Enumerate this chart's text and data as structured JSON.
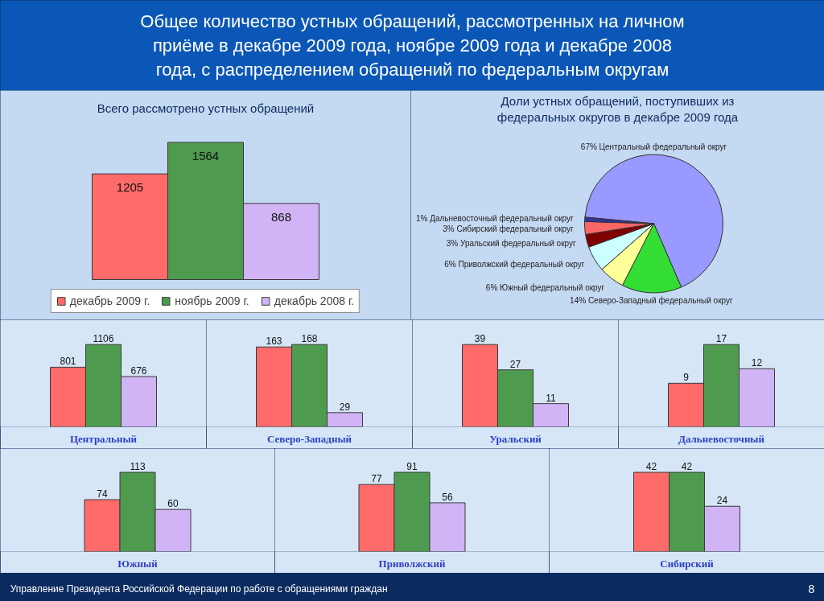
{
  "chart_data": [
    {
      "type": "other",
      "title": "Общее количество устных обращений, рассмотренных на личном приёме в декабре 2009 года, ноябре 2009 года и декабре 2008 года, с распределением обращений по федеральным округам"
    },
    {
      "type": "bar",
      "title": "Всего рассмотрено устных обращений",
      "categories": [
        null
      ],
      "series": [
        {
          "name": "декабрь 2009 г.",
          "color": "#ff6b6b",
          "values": [
            1205
          ]
        },
        {
          "name": "ноябрь 2009 г.",
          "color": "#4e9a4e",
          "values": [
            1564
          ]
        },
        {
          "name": "декабрь 2008 г.",
          "color": "#d0b4f5",
          "values": [
            868
          ]
        }
      ],
      "data_labels": true,
      "legend": "bottom",
      "tick_labels": false
    },
    {
      "type": "pie",
      "title": "Доли устных обращений, поступивших из федеральных округов в декабре 2009 года",
      "categories": [
        "Центральный федеральный округ",
        "Северо-Западный федеральный округ",
        "Южный федеральный округ",
        "Приволжский федеральный округ",
        "Уральский федеральный округ",
        "Сибирский федеральный округ",
        "Дальневосточный федеральный округ"
      ],
      "values": [
        67,
        14,
        6,
        6,
        3,
        3,
        1
      ],
      "colors": [
        "#9999ff",
        "#33dd33",
        "#ffff99",
        "#ccffff",
        "#800000",
        "#ff6666",
        "#333399"
      ],
      "value_labels": [
        "67%",
        "14%",
        "6%",
        "6%",
        "3%",
        "3%",
        "1%"
      ]
    },
    {
      "type": "bar",
      "title": "Центральный",
      "categories": [
        null,
        null,
        null
      ],
      "values": [
        801,
        1106,
        676
      ],
      "colors": [
        "#ff6b6b",
        "#4e9a4e",
        "#d0b4f5"
      ],
      "data_labels": true,
      "tick_labels": false
    },
    {
      "type": "bar",
      "title": "Северо-Западный",
      "categories": [
        null,
        null,
        null
      ],
      "values": [
        163,
        168,
        29
      ],
      "colors": [
        "#ff6b6b",
        "#4e9a4e",
        "#d0b4f5"
      ],
      "data_labels": true,
      "tick_labels": false
    },
    {
      "type": "bar",
      "title": "Уральский",
      "categories": [
        null,
        null,
        null
      ],
      "values": [
        39,
        27,
        11
      ],
      "colors": [
        "#ff6b6b",
        "#4e9a4e",
        "#d0b4f5"
      ],
      "data_labels": true,
      "tick_labels": false
    },
    {
      "type": "bar",
      "title": "Дальневосточный",
      "categories": [
        null,
        null,
        null
      ],
      "values": [
        9,
        17,
        12
      ],
      "colors": [
        "#ff6b6b",
        "#4e9a4e",
        "#d0b4f5"
      ],
      "data_labels": true,
      "tick_labels": false
    },
    {
      "type": "bar",
      "title": "Южный",
      "categories": [
        null,
        null,
        null
      ],
      "values": [
        74,
        113,
        60
      ],
      "colors": [
        "#ff6b6b",
        "#4e9a4e",
        "#d0b4f5"
      ],
      "data_labels": true,
      "tick_labels": false
    },
    {
      "type": "bar",
      "title": "Приволжский",
      "categories": [
        null,
        null,
        null
      ],
      "values": [
        77,
        91,
        56
      ],
      "colors": [
        "#ff6b6b",
        "#4e9a4e",
        "#d0b4f5"
      ],
      "data_labels": true,
      "tick_labels": false
    },
    {
      "type": "bar",
      "title": "Сибирский",
      "categories": [
        null,
        null,
        null
      ],
      "values": [
        42,
        42,
        24
      ],
      "colors": [
        "#ff6b6b",
        "#4e9a4e",
        "#d0b4f5"
      ],
      "data_labels": true,
      "tick_labels": false
    },
    {
      "type": "other",
      "annotations": [
        "Управление Президента Российской Федерации по работе с обращениями граждан",
        "8"
      ]
    }
  ]
}
